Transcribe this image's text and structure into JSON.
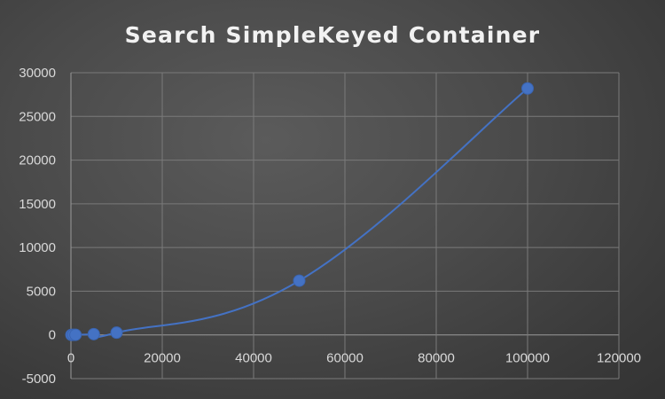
{
  "chart_data": {
    "type": "scatter",
    "title": "Search SimpleKeyed Container",
    "xlabel": "",
    "ylabel": "",
    "xlim": [
      0,
      120000
    ],
    "ylim": [
      -5000,
      30000
    ],
    "xticks": [
      0,
      20000,
      40000,
      60000,
      80000,
      100000,
      120000
    ],
    "yticks": [
      -5000,
      0,
      5000,
      10000,
      15000,
      20000,
      25000,
      30000
    ],
    "grid": true,
    "legend": "none",
    "smooth_line": true,
    "series": [
      {
        "color": "#4472c4",
        "x": [
          100,
          500,
          1000,
          5000,
          10000,
          50000,
          100000
        ],
        "y": [
          0,
          5,
          15,
          90,
          260,
          6200,
          28200
        ]
      }
    ]
  }
}
